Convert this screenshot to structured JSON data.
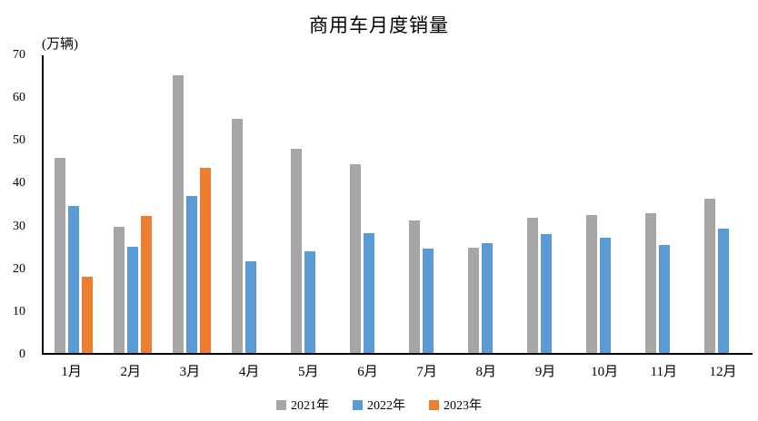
{
  "title": "商用车月度销量",
  "chart_data": {
    "type": "bar",
    "title": "商用车月度销量",
    "ylabel": "(万辆)",
    "xlabel": "",
    "ylim": [
      0,
      70
    ],
    "yticks": [
      0,
      10,
      20,
      30,
      40,
      50,
      60,
      70
    ],
    "grid": false,
    "legend_position": "bottom",
    "categories": [
      "1月",
      "2月",
      "3月",
      "4月",
      "5月",
      "6月",
      "7月",
      "8月",
      "9月",
      "10月",
      "11月",
      "12月"
    ],
    "series": [
      {
        "name": "2021年",
        "color": "#A6A6A6",
        "values": [
          45.8,
          29.6,
          65.3,
          55.0,
          48.1,
          44.5,
          31.2,
          24.7,
          31.7,
          32.5,
          32.9,
          36.3
        ]
      },
      {
        "name": "2022年",
        "color": "#5B9BD5",
        "values": [
          34.5,
          25.0,
          37.0,
          21.6,
          24.0,
          28.1,
          24.6,
          25.8,
          28.0,
          27.2,
          25.3,
          29.2
        ]
      },
      {
        "name": "2023年",
        "color": "#ED7D31",
        "values": [
          18.0,
          32.3,
          43.5,
          null,
          null,
          null,
          null,
          null,
          null,
          null,
          null,
          null
        ]
      }
    ],
    "axis_color": "#000000",
    "text_color": "#000000"
  }
}
